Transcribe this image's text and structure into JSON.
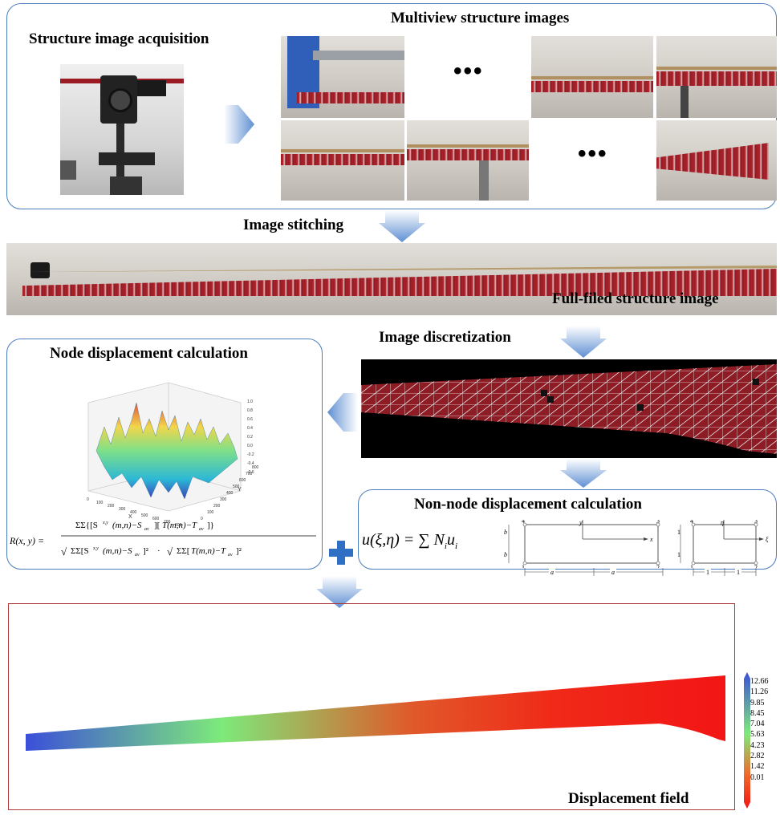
{
  "stages": {
    "acquisition_title": "Structure image acquisition",
    "multiview_title": "Multiview structure images",
    "ellipsis_top": "•••",
    "ellipsis_bottom": "•••",
    "stitching_label": "Image stitching",
    "fullfield_label": "Full-filed structure image",
    "discretization_label": "Image discretization",
    "node_title": "Node displacement calculation",
    "nonnode_title": "Non-node displacement calculation",
    "displacement_label": "Displacement field"
  },
  "surface_plot": {
    "x_label": "X",
    "y_label": "Y",
    "z_ticks": [
      "1.0",
      "0.8",
      "0.6",
      "0.4",
      "0.2",
      "0.0",
      "-0.2",
      "-0.4",
      "-0.6"
    ],
    "x_ticks": [
      "0",
      "100",
      "200",
      "300",
      "400",
      "500",
      "600",
      "700",
      "800"
    ],
    "y_ticks": [
      "0",
      "100",
      "200",
      "300",
      "400",
      "500",
      "600",
      "700",
      "800"
    ]
  },
  "formula": {
    "lhs": "R(x, y) =",
    "shape_function": "u(ξ,η) = ∑ N",
    "shape_sub": "i",
    "shape_u": "u",
    "shape_u_sub": "i"
  },
  "element_left": {
    "nodes": [
      "1",
      "2",
      "3",
      "4"
    ],
    "axis_x": "x",
    "axis_y": "y",
    "dim_a1": "a",
    "dim_a2": "a",
    "dim_b1": "b",
    "dim_b2": "b"
  },
  "element_right": {
    "nodes": [
      "1",
      "2",
      "3",
      "4"
    ],
    "axis_xi": "ξ",
    "axis_eta": "η",
    "dim_h1": "1",
    "dim_h2": "1",
    "dim_v1": "1",
    "dim_v2": "1"
  },
  "colorbar": {
    "ticks": [
      "12.66",
      "11.26",
      "9.85",
      "8.45",
      "7.04",
      "5.63",
      "4.23",
      "2.82",
      "1.42",
      "0.01"
    ],
    "top_color": "#3b4fd9",
    "mid_color": "#7dea7a",
    "bottom_color": "#f21515"
  },
  "colors": {
    "panel_border": "#4a7dbd",
    "arrow": "#6d95d4",
    "plus": "#2f6fc4",
    "beam_red": "#a8232c"
  }
}
